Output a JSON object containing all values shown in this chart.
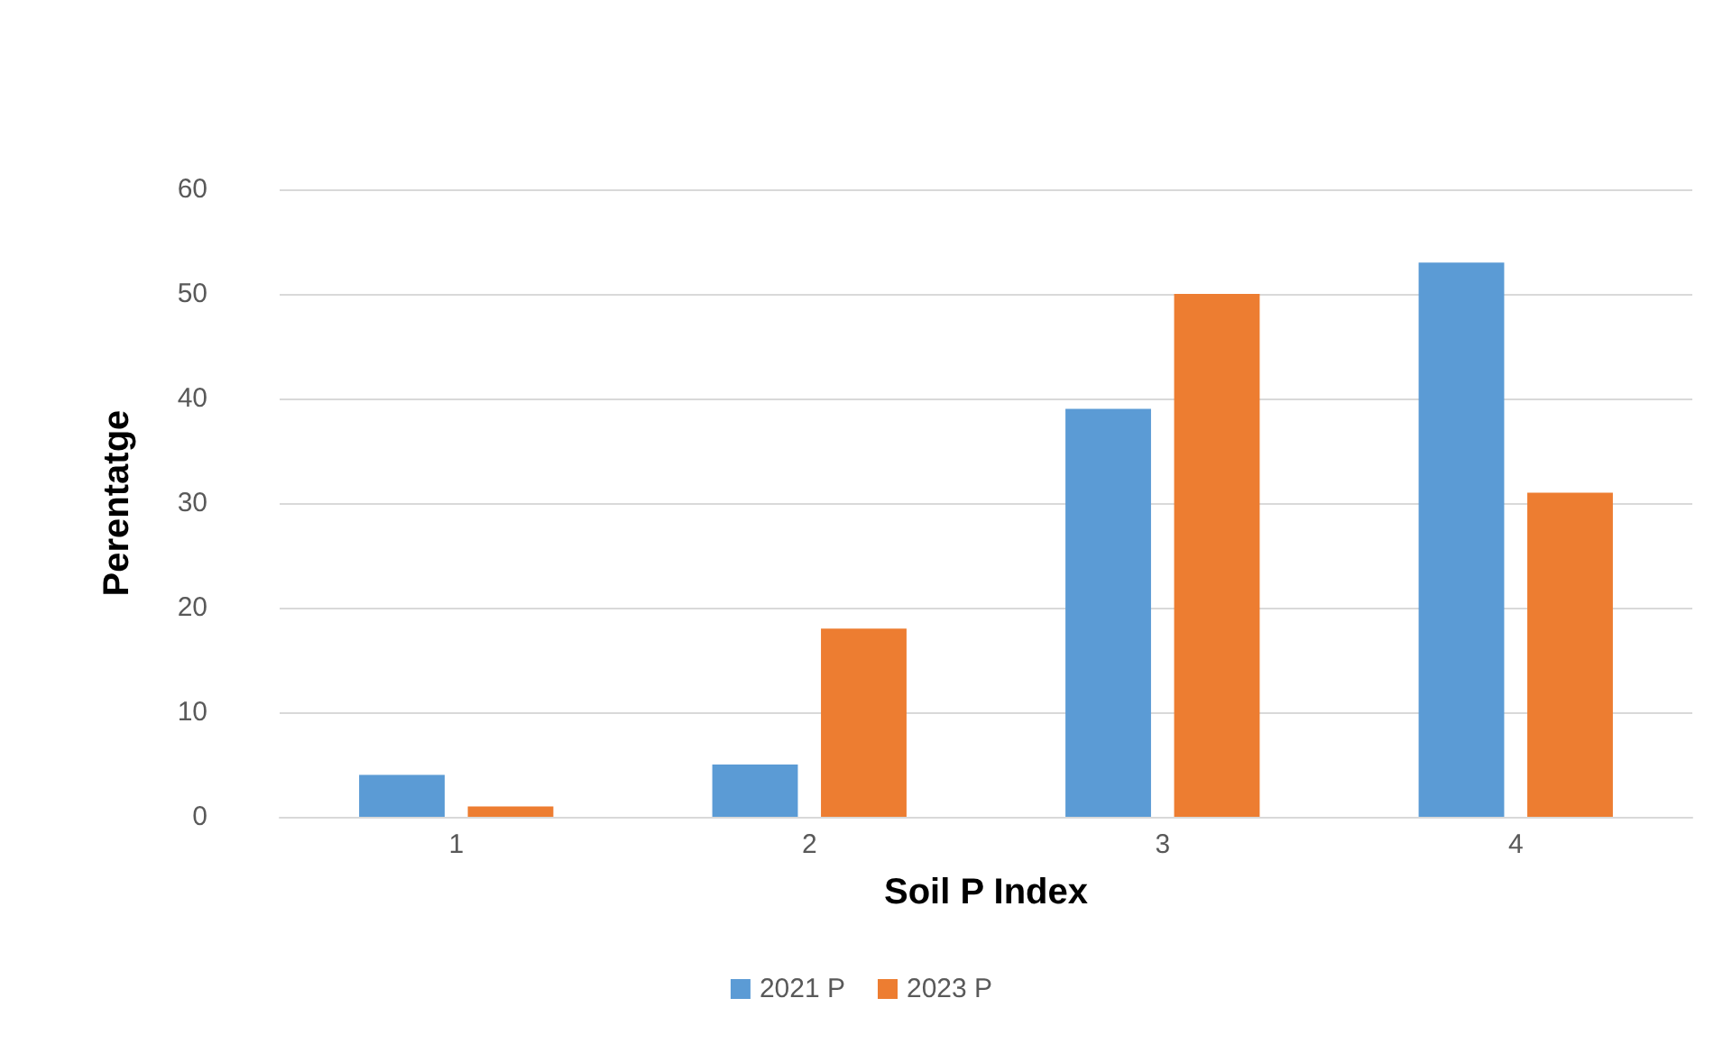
{
  "chart_data": {
    "type": "bar",
    "xlabel": "Soil P Index",
    "ylabel": "Perentatge",
    "categories": [
      "1",
      "2",
      "3",
      "4"
    ],
    "series": [
      {
        "name": "2021 P",
        "color": "#5b9bd5",
        "values": [
          4,
          5,
          39,
          53
        ]
      },
      {
        "name": "2023 P",
        "color": "#ed7d31",
        "values": [
          1,
          18,
          50,
          31
        ]
      }
    ],
    "ylim": [
      0,
      60
    ],
    "yticks": [
      0,
      10,
      20,
      30,
      40,
      50,
      60
    ],
    "grid": "y",
    "legend": "bottom"
  }
}
